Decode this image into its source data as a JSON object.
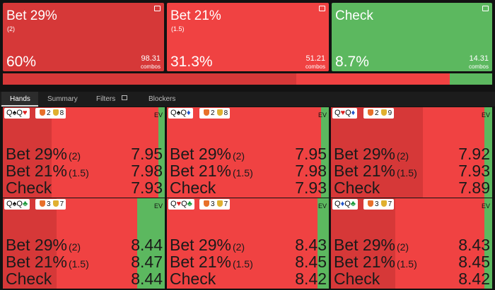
{
  "actions": [
    {
      "name": "Bet 29%",
      "size": "(2)",
      "freq": {
        "value": 60,
        "label": "60%"
      },
      "combos": 98.31,
      "color": "#d63838"
    },
    {
      "name": "Bet 21%",
      "size": "(1.5)",
      "freq": {
        "value": 31.3,
        "label": "31.3%"
      },
      "combos": 51.21,
      "color": "#f04242"
    },
    {
      "name": "Check",
      "freq": {
        "value": 8.7,
        "label": "8.7%"
      },
      "combos": 14.31,
      "color": "#5cb85f"
    }
  ],
  "combos_label": "combos",
  "tabs": [
    "Hands",
    "Summary",
    "Filters",
    "Blockers"
  ],
  "ev_label": "EV",
  "hands": [
    {
      "cards": [
        {
          "rank": "Q",
          "suit": "♠"
        },
        {
          "rank": "Q",
          "suit": "♥"
        }
      ],
      "blockers": [
        2,
        8
      ],
      "ev": [
        7.95,
        7.98,
        7.93
      ],
      "mix": [
        30,
        66,
        4
      ]
    },
    {
      "cards": [
        {
          "rank": "Q",
          "suit": "♠"
        },
        {
          "rank": "Q",
          "suit": "♦"
        }
      ],
      "blockers": [
        2,
        8
      ],
      "ev": [
        7.95,
        7.98,
        7.93
      ],
      "mix": [
        0,
        95,
        5
      ]
    },
    {
      "cards": [
        {
          "rank": "Q",
          "suit": "♥"
        },
        {
          "rank": "Q",
          "suit": "♦"
        }
      ],
      "blockers": [
        2,
        9
      ],
      "ev": [
        7.92,
        7.93,
        7.89
      ],
      "mix": [
        57,
        38,
        5
      ]
    },
    {
      "cards": [
        {
          "rank": "Q",
          "suit": "♠"
        },
        {
          "rank": "Q",
          "suit": "♣"
        }
      ],
      "blockers": [
        3,
        7
      ],
      "ev": [
        8.44,
        8.47,
        8.44
      ],
      "mix": [
        33,
        50,
        17
      ]
    },
    {
      "cards": [
        {
          "rank": "Q",
          "suit": "♥"
        },
        {
          "rank": "Q",
          "suit": "♣"
        }
      ],
      "blockers": [
        3,
        7
      ],
      "ev": [
        8.43,
        8.45,
        8.42
      ],
      "mix": [
        0,
        93,
        7
      ]
    },
    {
      "cards": [
        {
          "rank": "Q",
          "suit": "♦"
        },
        {
          "rank": "Q",
          "suit": "♣"
        }
      ],
      "blockers": [
        3,
        7
      ],
      "ev": [
        8.43,
        8.45,
        8.42
      ],
      "mix": [
        40,
        55,
        5
      ]
    }
  ]
}
